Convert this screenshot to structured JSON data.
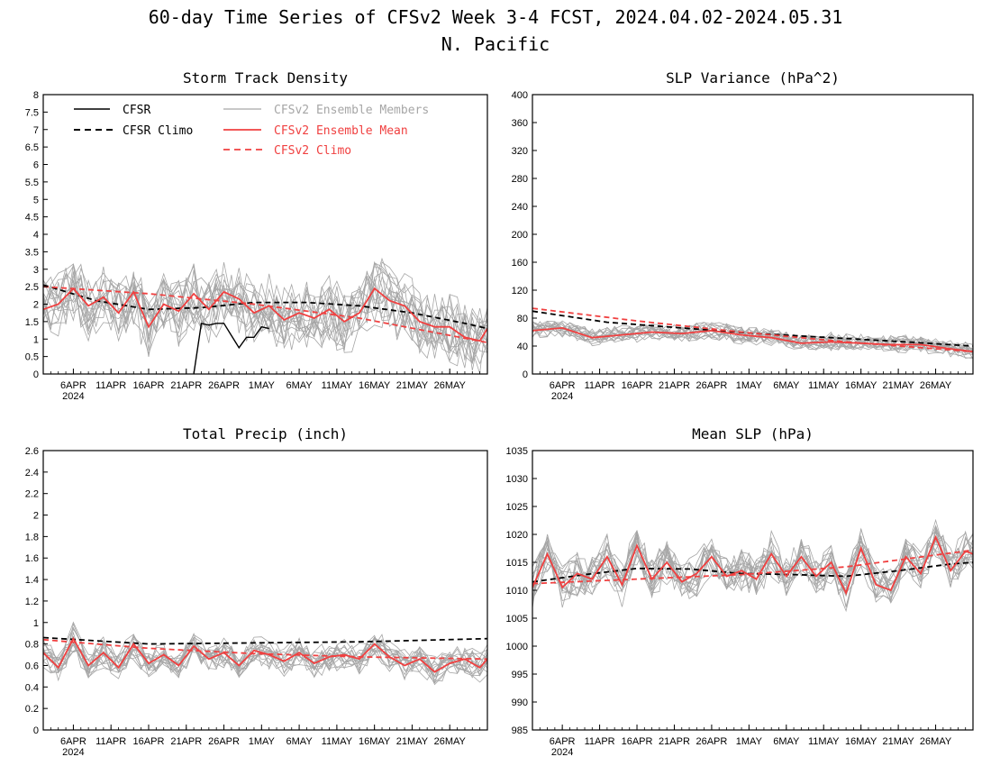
{
  "figure": {
    "title_line1": "60-day Time Series of CFSv2 Week 3-4 FCST, 2024.04.02-2024.05.31",
    "title_line2": "N. Pacific"
  },
  "colors": {
    "cfsr": "#000000",
    "cfsr_climo": "#000000",
    "members": "#a6a6a6",
    "ens_mean": "#f04040",
    "cfsv2_climo": "#f04040"
  },
  "legend": {
    "cfsr": "CFSR",
    "cfsr_climo": "CFSR Climo",
    "members": "CFSv2 Ensemble Members",
    "ens_mean": "CFSv2 Ensemble Mean",
    "cfsv2_climo": "CFSv2 Climo"
  },
  "chart_data": [
    {
      "type": "line",
      "id": "storm",
      "title": "Storm Track Density",
      "x_start": "2024-04-02",
      "x_end": "2024-05-31",
      "x_ticks": [
        "6APR",
        "11APR",
        "16APR",
        "21APR",
        "26APR",
        "1MAY",
        "6MAY",
        "11MAY",
        "16MAY",
        "21MAY",
        "26MAY"
      ],
      "x_year_label": "2024",
      "ylim": [
        0,
        8
      ],
      "y_ticks": [
        "0",
        "0.5",
        "1",
        "1.5",
        "2",
        "2.5",
        "3",
        "3.5",
        "4",
        "4.5",
        "5",
        "5.5",
        "6",
        "6.5",
        "7",
        "7.5",
        "8"
      ],
      "members_count": 16,
      "members_spread": 0.85,
      "series": [
        {
          "name": "CFSR",
          "x": [
            "2024-04-22",
            "2024-04-23",
            "2024-04-24",
            "2024-04-25",
            "2024-04-26",
            "2024-04-27",
            "2024-04-28",
            "2024-04-29",
            "2024-04-30",
            "2024-05-01",
            "2024-05-02"
          ],
          "values": [
            0,
            1.45,
            1.4,
            1.45,
            1.45,
            1.1,
            0.75,
            1.05,
            1.05,
            1.35,
            1.3
          ]
        },
        {
          "name": "CFSR Climo",
          "x": [
            "2024-04-02",
            "2024-04-09",
            "2024-04-16",
            "2024-04-23",
            "2024-04-30",
            "2024-05-07",
            "2024-05-14",
            "2024-05-21",
            "2024-05-28",
            "2024-05-31"
          ],
          "values": [
            2.55,
            2.1,
            1.85,
            1.9,
            2.05,
            2.05,
            1.95,
            1.75,
            1.45,
            1.3
          ]
        },
        {
          "name": "CFSv2 Ensemble Mean",
          "x": [
            "2024-04-02",
            "2024-04-04",
            "2024-04-06",
            "2024-04-08",
            "2024-04-10",
            "2024-04-12",
            "2024-04-14",
            "2024-04-16",
            "2024-04-18",
            "2024-04-20",
            "2024-04-22",
            "2024-04-24",
            "2024-04-26",
            "2024-04-28",
            "2024-04-30",
            "2024-05-02",
            "2024-05-04",
            "2024-05-06",
            "2024-05-08",
            "2024-05-10",
            "2024-05-12",
            "2024-05-14",
            "2024-05-16",
            "2024-05-18",
            "2024-05-20",
            "2024-05-22",
            "2024-05-24",
            "2024-05-26",
            "2024-05-28",
            "2024-05-30",
            "2024-05-31"
          ],
          "values": [
            1.85,
            2.0,
            2.45,
            1.95,
            2.2,
            1.75,
            2.35,
            1.35,
            2.0,
            1.8,
            2.3,
            1.85,
            2.35,
            2.15,
            1.75,
            1.95,
            1.55,
            1.75,
            1.6,
            1.85,
            1.5,
            1.75,
            2.45,
            2.1,
            1.95,
            1.5,
            1.35,
            1.35,
            1.05,
            0.95,
            1.3
          ]
        },
        {
          "name": "CFSv2 Climo",
          "x": [
            "2024-04-02",
            "2024-04-16",
            "2024-04-30",
            "2024-05-14",
            "2024-05-31"
          ],
          "values": [
            2.5,
            2.3,
            2.0,
            1.6,
            0.9
          ]
        }
      ]
    },
    {
      "type": "line",
      "id": "slpvar",
      "title": "SLP Variance (hPa^2)",
      "x_start": "2024-04-02",
      "x_end": "2024-05-31",
      "x_ticks": [
        "6APR",
        "11APR",
        "16APR",
        "21APR",
        "26APR",
        "1MAY",
        "6MAY",
        "11MAY",
        "16MAY",
        "21MAY",
        "26MAY"
      ],
      "x_year_label": "2024",
      "ylim": [
        0,
        400
      ],
      "y_ticks": [
        "0",
        "40",
        "80",
        "120",
        "160",
        "200",
        "240",
        "280",
        "320",
        "360",
        "400"
      ],
      "members_count": 16,
      "members_spread": 11,
      "series": [
        {
          "name": "CFSR Climo",
          "x": [
            "2024-04-02",
            "2024-04-12",
            "2024-04-22",
            "2024-05-02",
            "2024-05-12",
            "2024-05-22",
            "2024-05-31"
          ],
          "values": [
            90,
            74,
            66,
            58,
            52,
            46,
            40
          ]
        },
        {
          "name": "CFSv2 Ensemble Mean",
          "x": [
            "2024-04-02",
            "2024-04-06",
            "2024-04-10",
            "2024-04-14",
            "2024-04-18",
            "2024-04-22",
            "2024-04-26",
            "2024-04-30",
            "2024-05-04",
            "2024-05-08",
            "2024-05-12",
            "2024-05-16",
            "2024-05-20",
            "2024-05-24",
            "2024-05-28",
            "2024-05-31"
          ],
          "values": [
            62,
            66,
            52,
            56,
            60,
            58,
            62,
            56,
            52,
            44,
            46,
            44,
            42,
            42,
            36,
            32
          ]
        },
        {
          "name": "CFSv2 Climo",
          "x": [
            "2024-04-02",
            "2024-04-16",
            "2024-04-30",
            "2024-05-14",
            "2024-05-31"
          ],
          "values": [
            94,
            76,
            60,
            46,
            32
          ]
        }
      ]
    },
    {
      "type": "line",
      "id": "precip",
      "title": "Total Precip (inch)",
      "x_start": "2024-04-02",
      "x_end": "2024-05-31",
      "x_ticks": [
        "6APR",
        "11APR",
        "16APR",
        "21APR",
        "26APR",
        "1MAY",
        "6MAY",
        "11MAY",
        "16MAY",
        "21MAY",
        "26MAY"
      ],
      "x_year_label": "2024",
      "ylim": [
        0,
        2.6
      ],
      "y_ticks": [
        "0",
        "0.2",
        "0.4",
        "0.6",
        "0.8",
        "1",
        "1.2",
        "1.4",
        "1.6",
        "1.8",
        "2",
        "2.2",
        "2.4",
        "2.6"
      ],
      "members_count": 16,
      "members_spread": 0.12,
      "series": [
        {
          "name": "CFSR Climo",
          "x": [
            "2024-04-02",
            "2024-04-16",
            "2024-04-30",
            "2024-05-14",
            "2024-05-31"
          ],
          "values": [
            0.86,
            0.8,
            0.81,
            0.82,
            0.85
          ]
        },
        {
          "name": "CFSv2 Ensemble Mean",
          "x": [
            "2024-04-02",
            "2024-04-04",
            "2024-04-06",
            "2024-04-08",
            "2024-04-10",
            "2024-04-12",
            "2024-04-14",
            "2024-04-16",
            "2024-04-18",
            "2024-04-20",
            "2024-04-22",
            "2024-04-24",
            "2024-04-26",
            "2024-04-28",
            "2024-04-30",
            "2024-05-02",
            "2024-05-04",
            "2024-05-06",
            "2024-05-08",
            "2024-05-10",
            "2024-05-12",
            "2024-05-14",
            "2024-05-16",
            "2024-05-18",
            "2024-05-20",
            "2024-05-22",
            "2024-05-24",
            "2024-05-26",
            "2024-05-28",
            "2024-05-30",
            "2024-05-31"
          ],
          "values": [
            0.72,
            0.58,
            0.85,
            0.6,
            0.72,
            0.58,
            0.8,
            0.62,
            0.7,
            0.6,
            0.78,
            0.66,
            0.72,
            0.6,
            0.74,
            0.7,
            0.64,
            0.72,
            0.62,
            0.68,
            0.7,
            0.66,
            0.8,
            0.68,
            0.6,
            0.66,
            0.54,
            0.62,
            0.66,
            0.58,
            0.66
          ]
        },
        {
          "name": "CFSv2 Climo",
          "x": [
            "2024-04-02",
            "2024-04-16",
            "2024-04-30",
            "2024-05-14",
            "2024-05-31"
          ],
          "values": [
            0.84,
            0.76,
            0.71,
            0.68,
            0.66
          ]
        }
      ]
    },
    {
      "type": "line",
      "id": "slp",
      "title": "Mean SLP (hPa)",
      "x_start": "2024-04-02",
      "x_end": "2024-05-31",
      "x_ticks": [
        "6APR",
        "11APR",
        "16APR",
        "21APR",
        "26APR",
        "1MAY",
        "6MAY",
        "11MAY",
        "16MAY",
        "21MAY",
        "26MAY"
      ],
      "x_year_label": "2024",
      "ylim": [
        985,
        1035
      ],
      "y_ticks": [
        "985",
        "990",
        "995",
        "1000",
        "1005",
        "1010",
        "1015",
        "1020",
        "1025",
        "1030",
        "1035"
      ],
      "members_count": 16,
      "members_spread": 3.3,
      "series": [
        {
          "name": "CFSR Climo",
          "x": [
            "2024-04-02",
            "2024-04-09",
            "2024-04-16",
            "2024-04-23",
            "2024-04-30",
            "2024-05-07",
            "2024-05-14",
            "2024-05-21",
            "2024-05-28",
            "2024-05-31"
          ],
          "values": [
            1011.5,
            1012.8,
            1013.9,
            1013.8,
            1013.0,
            1012.8,
            1012.5,
            1013.5,
            1014.7,
            1015.0
          ]
        },
        {
          "name": "CFSv2 Ensemble Mean",
          "x": [
            "2024-04-02",
            "2024-04-04",
            "2024-04-06",
            "2024-04-08",
            "2024-04-10",
            "2024-04-12",
            "2024-04-14",
            "2024-04-16",
            "2024-04-18",
            "2024-04-20",
            "2024-04-22",
            "2024-04-24",
            "2024-04-26",
            "2024-04-28",
            "2024-04-30",
            "2024-05-02",
            "2024-05-04",
            "2024-05-06",
            "2024-05-08",
            "2024-05-10",
            "2024-05-12",
            "2024-05-14",
            "2024-05-16",
            "2024-05-18",
            "2024-05-20",
            "2024-05-22",
            "2024-05-24",
            "2024-05-26",
            "2024-05-28",
            "2024-05-30",
            "2024-05-31"
          ],
          "values": [
            1010.5,
            1016.5,
            1010.5,
            1013.0,
            1012.0,
            1016.0,
            1011.0,
            1018.0,
            1012.0,
            1015.0,
            1011.5,
            1013.0,
            1016.0,
            1012.5,
            1013.5,
            1012.0,
            1016.5,
            1012.5,
            1016.0,
            1012.5,
            1015.0,
            1009.5,
            1017.5,
            1011.0,
            1010.0,
            1016.0,
            1013.0,
            1019.5,
            1013.5,
            1017.0,
            1016.5
          ]
        },
        {
          "name": "CFSv2 Climo",
          "x": [
            "2024-04-02",
            "2024-04-16",
            "2024-04-30",
            "2024-05-14",
            "2024-05-31"
          ],
          "values": [
            1011.2,
            1012.0,
            1012.8,
            1014.2,
            1017.2
          ]
        }
      ]
    }
  ]
}
